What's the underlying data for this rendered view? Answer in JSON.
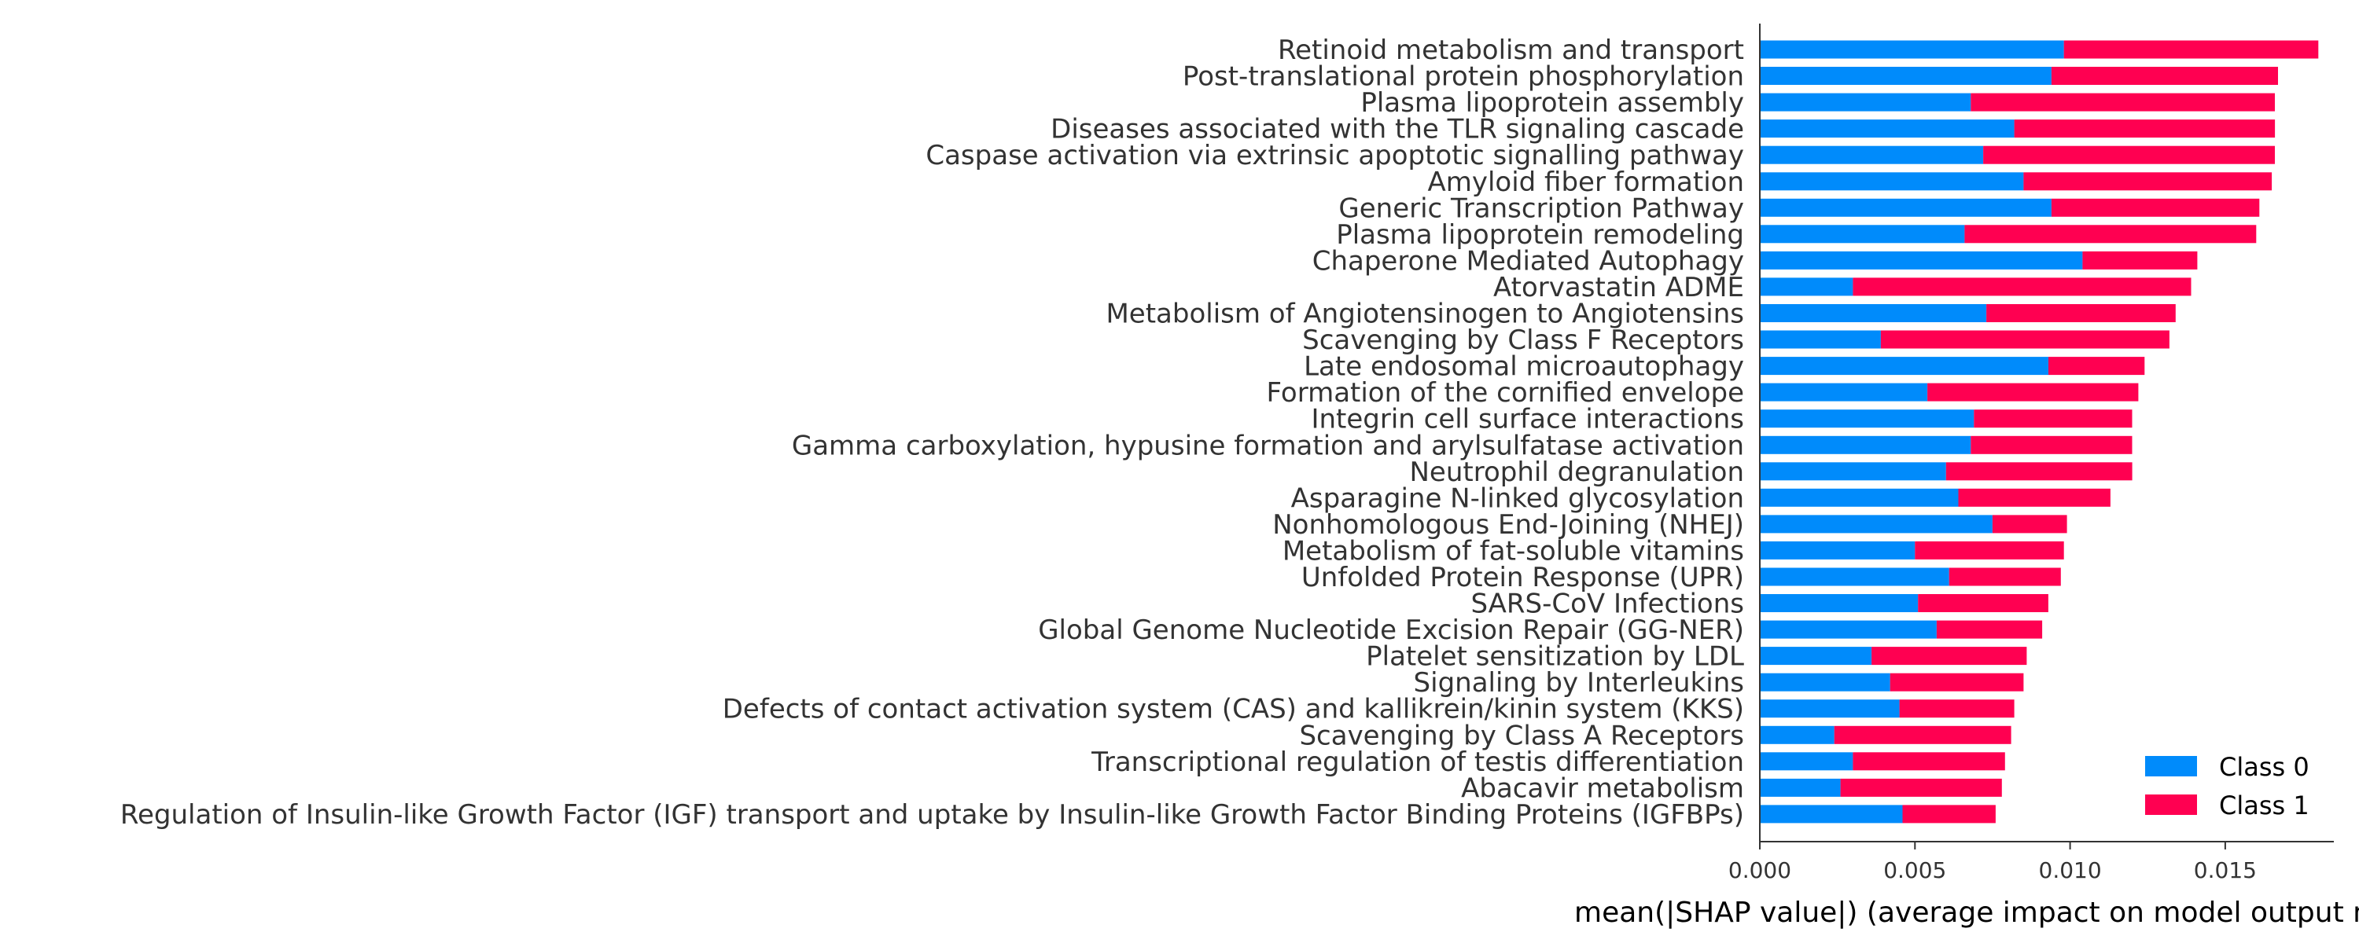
{
  "chart_data": {
    "type": "bar",
    "orientation": "horizontal",
    "stacked": true,
    "xlabel": "mean(|SHAP value|) (average impact on model output magnitude)",
    "xlim": [
      0.0,
      0.0185
    ],
    "xticks": [
      "0.000",
      "0.005",
      "0.010",
      "0.015"
    ],
    "xtick_values": [
      0.0,
      0.005,
      0.01,
      0.015
    ],
    "legend_position": "bottom-right",
    "colors": {
      "Class 0": "#008bfb",
      "Class 1": "#ff0051"
    },
    "categories": [
      "Retinoid metabolism and transport",
      "Post-translational protein phosphorylation",
      "Plasma lipoprotein assembly",
      "Diseases associated with the TLR signaling cascade",
      "Caspase activation via extrinsic apoptotic signalling pathway",
      "Amyloid fiber formation",
      "Generic Transcription Pathway",
      "Plasma lipoprotein remodeling",
      "Chaperone Mediated Autophagy",
      "Atorvastatin ADME",
      "Metabolism of Angiotensinogen to Angiotensins",
      "Scavenging by Class F Receptors",
      "Late endosomal microautophagy",
      "Formation of the cornified envelope",
      "Integrin cell surface interactions",
      "Gamma carboxylation, hypusine formation and arylsulfatase activation",
      "Neutrophil degranulation",
      "Asparagine N-linked glycosylation",
      "Nonhomologous End-Joining (NHEJ)",
      "Metabolism of fat-soluble vitamins",
      "Unfolded Protein Response (UPR)",
      "SARS-CoV Infections",
      "Global Genome Nucleotide Excision Repair (GG-NER)",
      "Platelet sensitization by LDL",
      "Signaling by Interleukins",
      "Defects of contact activation system (CAS) and kallikrein/kinin system (KKS)",
      "Scavenging by Class A Receptors",
      "Transcriptional regulation of testis differentiation",
      "Abacavir metabolism",
      "Regulation of Insulin-like Growth Factor (IGF) transport and uptake by Insulin-like Growth Factor Binding Proteins (IGFBPs)"
    ],
    "series": [
      {
        "name": "Class 0",
        "values": [
          0.0098,
          0.0094,
          0.0068,
          0.0082,
          0.0072,
          0.0085,
          0.0094,
          0.0066,
          0.0104,
          0.003,
          0.0073,
          0.0039,
          0.0093,
          0.0054,
          0.0069,
          0.0068,
          0.006,
          0.0064,
          0.0075,
          0.005,
          0.0061,
          0.0051,
          0.0057,
          0.0036,
          0.0042,
          0.0045,
          0.0024,
          0.003,
          0.0026,
          0.0046
        ]
      },
      {
        "name": "Class 1",
        "values": [
          0.0082,
          0.0073,
          0.0098,
          0.0084,
          0.0094,
          0.008,
          0.0067,
          0.0094,
          0.0037,
          0.0109,
          0.0061,
          0.0093,
          0.0031,
          0.0068,
          0.0051,
          0.0052,
          0.006,
          0.0049,
          0.0024,
          0.0048,
          0.0036,
          0.0042,
          0.0034,
          0.005,
          0.0043,
          0.0037,
          0.0057,
          0.0049,
          0.0052,
          0.003
        ]
      }
    ]
  }
}
